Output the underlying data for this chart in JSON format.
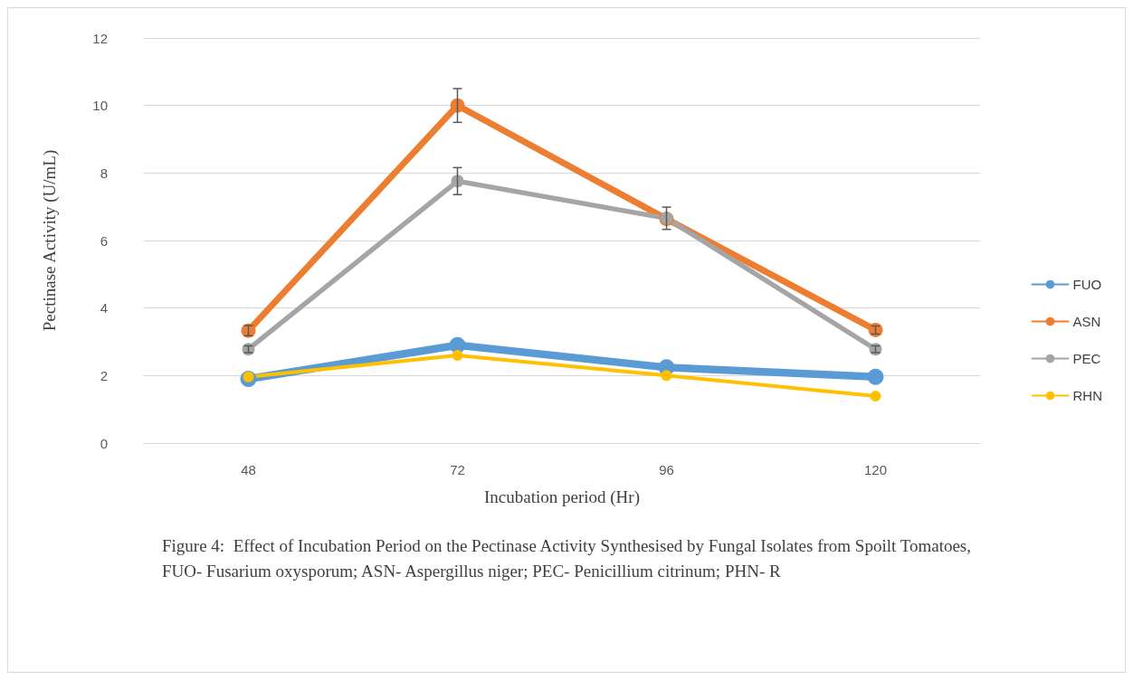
{
  "chart_data": {
    "type": "line",
    "xlabel": "Incubation period (Hr)",
    "ylabel": "Pectinase Activity (U/mL)",
    "categories": [
      "48",
      "72",
      "96",
      "120"
    ],
    "series": [
      {
        "name": "FUO",
        "color": "#5b9bd5",
        "values": [
          1.9,
          2.9,
          2.24,
          1.96
        ]
      },
      {
        "name": "ASN",
        "color": "#ed7d31",
        "values": [
          3.33,
          10.0,
          6.64,
          3.35
        ],
        "errors": [
          0.15,
          0.5,
          null,
          0.12
        ]
      },
      {
        "name": "PEC",
        "color": "#a5a5a5",
        "values": [
          2.78,
          7.76,
          6.66,
          2.78
        ],
        "errors": [
          0.1,
          0.4,
          0.33,
          0.1
        ]
      },
      {
        "name": "RHN",
        "color": "#ffc000",
        "values": [
          1.96,
          2.6,
          2.0,
          1.39
        ]
      }
    ],
    "ylim": [
      0,
      12
    ],
    "yticks": [
      0,
      2,
      4,
      6,
      8,
      10,
      12
    ],
    "grid": "y",
    "legend": "right",
    "marker": "circle",
    "line_style": "solid",
    "annotations": [
      "Figure 4:  Effect of Incubation Period on the Pectinase Activity Synthesised by Fungal Isolates from Spoilt Tomatoes, FUO- Fusarium oxysporum; ASN- Aspergillus niger; PEC- Penicillium citrinum; PHN- R"
    ]
  }
}
